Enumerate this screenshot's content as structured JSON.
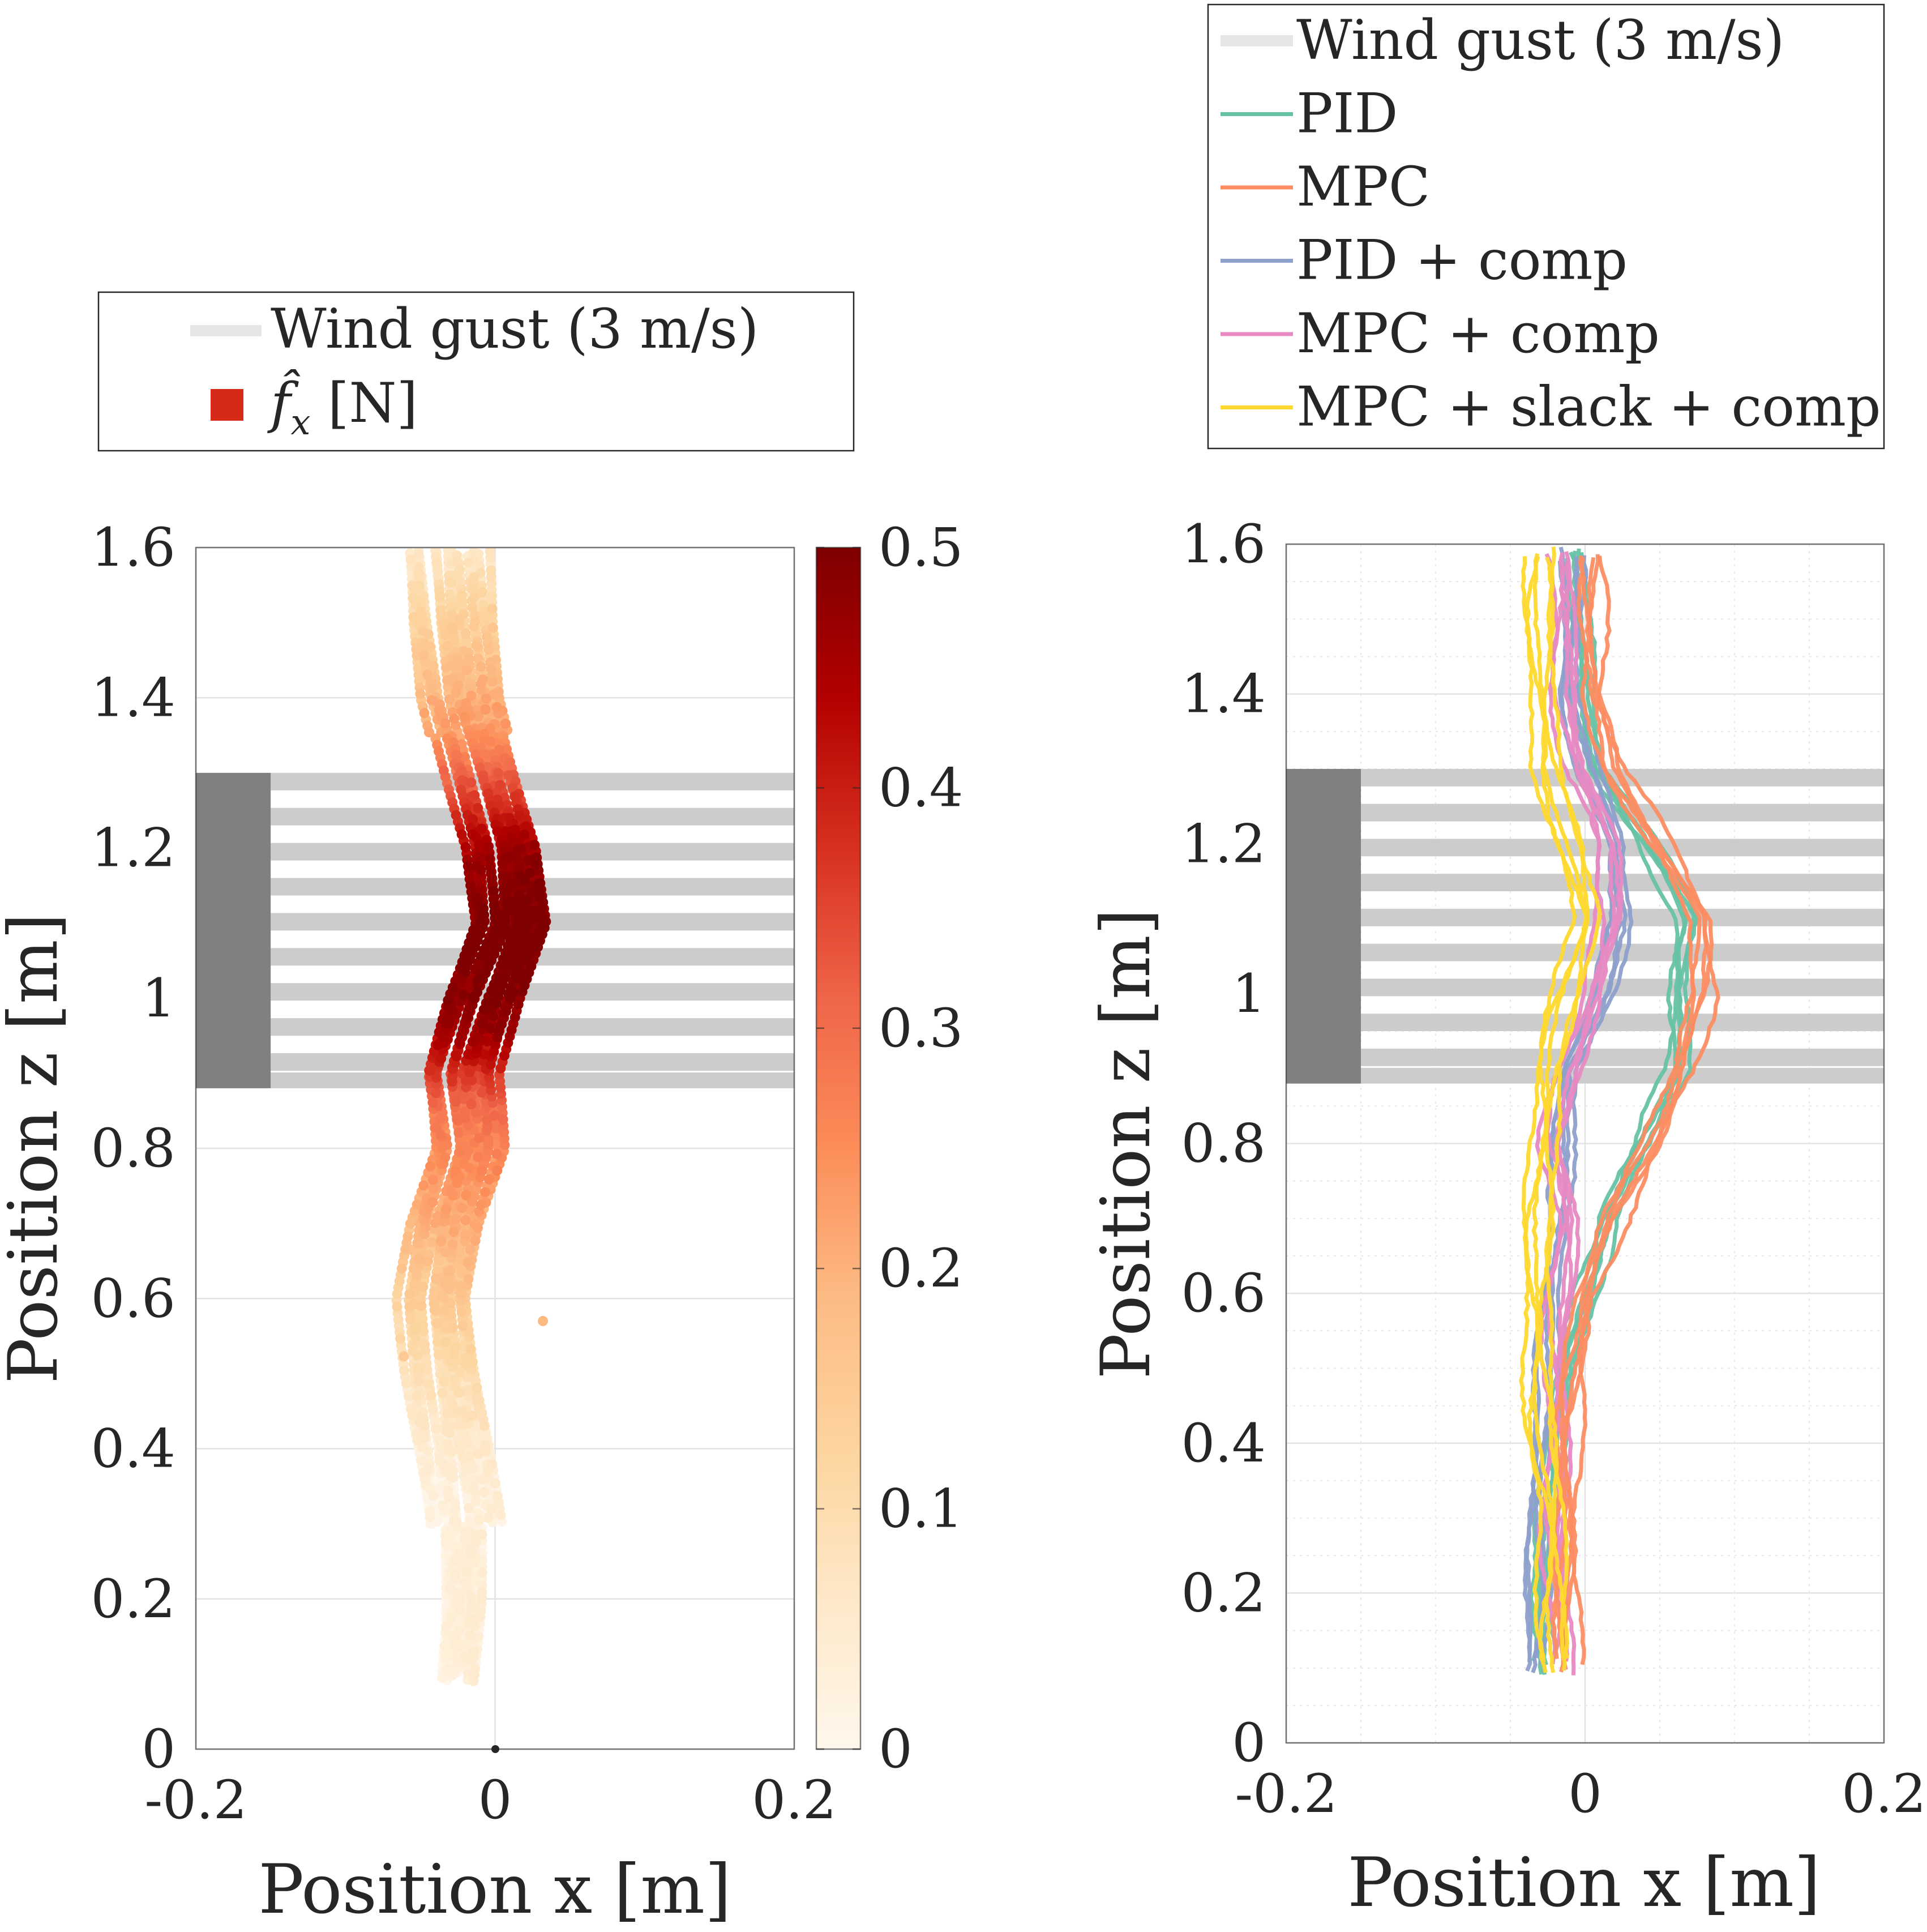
{
  "colors": {
    "gust": "#cccccc",
    "fan": "#808080",
    "legend_gust": "#e6e6e6",
    "fx_marker": "#d42a17",
    "pid": "#66c2a5",
    "mpc": "#fc8d62",
    "pid_comp": "#8da0cb",
    "mpc_comp": "#e78ac3",
    "mpc_slack_comp": "#ffd92f"
  },
  "chart_data": [
    {
      "type": "scatter",
      "xlabel": "Position x [m]",
      "ylabel": "Position z [m]",
      "xlim": [
        -0.2,
        0.2
      ],
      "ylim": [
        0,
        1.6
      ],
      "xticks": [
        "-0.2",
        "0",
        "0.2"
      ],
      "yticks": [
        "0",
        "0.2",
        "0.4",
        "0.6",
        "0.8",
        "1",
        "1.2",
        "1.4",
        "1.6"
      ],
      "grid": true,
      "legend_position": "top",
      "legend": [
        {
          "label": "Wind gust (3 m/s)",
          "kind": "band"
        },
        {
          "label": "f̂",
          "subscript": "x",
          "suffix": " [N]",
          "kind": "square"
        }
      ],
      "gust_region": {
        "x": [
          -0.15,
          0.2
        ],
        "z": [
          0.88,
          1.3
        ],
        "stripes": 9
      },
      "fan_block": {
        "x": [
          -0.2,
          -0.15
        ],
        "z": [
          0.88,
          1.3
        ]
      },
      "colorbar": {
        "min": 0,
        "max": 0.5,
        "ticks": [
          "0",
          "0.1",
          "0.2",
          "0.3",
          "0.4",
          "0.5"
        ],
        "colormap": "OrRd"
      },
      "color_value": "fx_hat [N]",
      "trajectory_profile": {
        "z": [
          0.09,
          0.2,
          0.3,
          0.4,
          0.5,
          0.6,
          0.7,
          0.8,
          0.9,
          1.0,
          1.1,
          1.2,
          1.3,
          1.4,
          1.5,
          1.6
        ],
        "x": [
          -0.027,
          -0.023,
          -0.022,
          -0.028,
          -0.036,
          -0.042,
          -0.035,
          -0.02,
          -0.025,
          -0.01,
          0.01,
          0.005,
          -0.01,
          -0.025,
          -0.032,
          -0.035
        ]
      },
      "trajectory_count": 16,
      "outliers": [
        {
          "x": -0.056,
          "z": 0.665,
          "fx": 0.17
        },
        {
          "x": -0.061,
          "z": 0.523,
          "fx": 0.15
        },
        {
          "x": 0.032,
          "z": 0.57,
          "fx": 0.19
        }
      ]
    },
    {
      "type": "line",
      "xlabel": "Position x [m]",
      "ylabel": "Position z [m]",
      "xlim": [
        -0.2,
        0.2
      ],
      "ylim": [
        0,
        1.6
      ],
      "xticks": [
        "-0.2",
        "0",
        "0.2"
      ],
      "yticks": [
        "0",
        "0.2",
        "0.4",
        "0.6",
        "0.8",
        "1",
        "1.2",
        "1.4",
        "1.6"
      ],
      "grid": true,
      "minor_grid": true,
      "legend_position": "top",
      "gust_region": {
        "x": [
          -0.15,
          0.2
        ],
        "z": [
          0.88,
          1.3
        ],
        "stripes": 9
      },
      "fan_block": {
        "x": [
          -0.2,
          -0.15
        ],
        "z": [
          0.88,
          1.3
        ]
      },
      "z": [
        0.09,
        0.2,
        0.3,
        0.4,
        0.5,
        0.6,
        0.7,
        0.8,
        0.9,
        1.0,
        1.1,
        1.2,
        1.3,
        1.4,
        1.5,
        1.6
      ],
      "series": [
        {
          "name": "Wind gust (3 m/s)",
          "kind": "band",
          "color_key": "legend_gust"
        },
        {
          "name": "PID",
          "color_key": "pid",
          "runs": 5,
          "x": [
            -0.03,
            -0.028,
            -0.025,
            -0.022,
            -0.01,
            0.0,
            0.015,
            0.04,
            0.06,
            0.063,
            0.07,
            0.04,
            0.01,
            -0.002,
            -0.005,
            -0.004
          ]
        },
        {
          "name": "MPC",
          "color_key": "mpc",
          "runs": 5,
          "x": [
            -0.012,
            -0.012,
            -0.012,
            -0.012,
            -0.007,
            0.0,
            0.02,
            0.045,
            0.065,
            0.08,
            0.078,
            0.05,
            0.02,
            0.005,
            0.005,
            0.005
          ]
        },
        {
          "name": "PID + comp",
          "color_key": "pid_comp",
          "runs": 5,
          "x": [
            -0.035,
            -0.033,
            -0.03,
            -0.03,
            -0.027,
            -0.022,
            -0.02,
            -0.015,
            -0.01,
            0.01,
            0.025,
            0.02,
            0.0,
            -0.01,
            -0.01,
            -0.01
          ]
        },
        {
          "name": "MPC + comp",
          "color_key": "mpc_comp",
          "runs": 5,
          "x": [
            -0.015,
            -0.017,
            -0.018,
            -0.018,
            -0.018,
            -0.015,
            -0.012,
            -0.02,
            -0.01,
            0.005,
            0.02,
            0.015,
            -0.005,
            -0.012,
            -0.015,
            -0.015
          ]
        },
        {
          "name": "MPC + slack + comp",
          "color_key": "mpc_slack_comp",
          "runs": 5,
          "x": [
            -0.02,
            -0.022,
            -0.023,
            -0.028,
            -0.032,
            -0.033,
            -0.03,
            -0.028,
            -0.025,
            -0.012,
            0.0,
            -0.01,
            -0.025,
            -0.03,
            -0.03,
            -0.03
          ]
        }
      ]
    }
  ]
}
